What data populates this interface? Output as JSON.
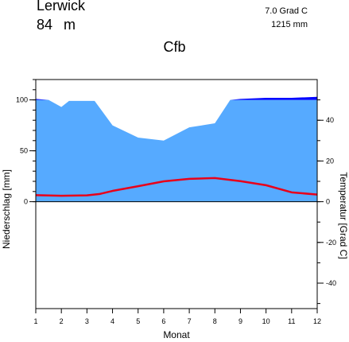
{
  "header": {
    "station": "Lerwick",
    "elevation_value": "84",
    "elevation_unit": "m",
    "mean_temperature": "7.0 Grad C",
    "annual_precipitation": "1215 mm",
    "climate_class": "Cfb"
  },
  "chart_data": {
    "type": "area",
    "xlabel": "Monat",
    "ylabel_left": "Niederschlag [mm]",
    "ylabel_right": "Temperatur [Grad C]",
    "x_ticks": [
      "1",
      "2",
      "3",
      "4",
      "5",
      "6",
      "7",
      "8",
      "9",
      "10",
      "11",
      "12"
    ],
    "left_ticks": [
      0,
      50,
      100
    ],
    "right_ticks": [
      -40,
      -20,
      0,
      20,
      40
    ],
    "x": [
      1,
      1.5,
      2,
      2.3,
      3,
      3.3,
      4,
      5,
      6,
      7,
      8,
      8.6,
      9,
      10,
      11,
      12
    ],
    "precipitation_mm": [
      101,
      100,
      93,
      99,
      99,
      99,
      75,
      63,
      60,
      73,
      77,
      100,
      101,
      102,
      102,
      103
    ],
    "precipitation_clip_mm": 100,
    "temperature_c": [
      3.2,
      2.9,
      3.1,
      3.8,
      5.3,
      7.6,
      10.0,
      11.2,
      11.6,
      10.1,
      8.1,
      4.6,
      3.5
    ],
    "temperature_x": [
      1,
      2,
      3,
      3.5,
      4,
      5,
      6,
      7,
      8,
      9,
      10,
      11,
      12
    ],
    "precip_ylim": [
      -105,
      120
    ],
    "temp_ylim": [
      -52.5,
      60
    ],
    "colors": {
      "precip_fill": "#56aaff",
      "precip_excess": "#0000ff",
      "temperature_line": "#e8001a",
      "axis": "#000000"
    }
  }
}
